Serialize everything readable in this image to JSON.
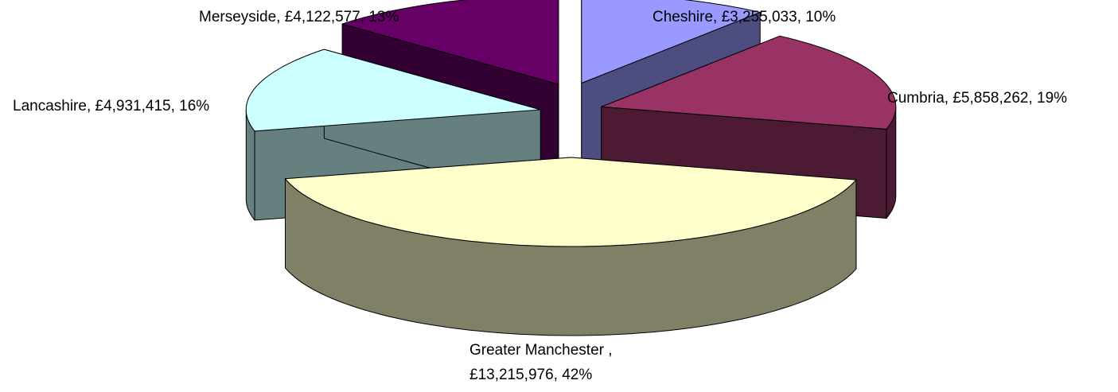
{
  "chart_data": {
    "type": "pie3d",
    "categories": [
      "Cheshire",
      "Cumbria",
      "Greater Manchester",
      "Lancashire",
      "Merseyside"
    ],
    "values": [
      3255033,
      5858262,
      13215976,
      4931415,
      4122577
    ],
    "value_labels": [
      [
        "Cheshire, £3,255,033, 10%"
      ],
      [
        "Cumbria, £5,858,262, 19%"
      ],
      [
        "Greater Manchester ,",
        "£13,215,976, 42%"
      ],
      [
        "Lancashire, £4,931,415, 16%"
      ],
      [
        "Merseyside, £4,122,577, 13%"
      ]
    ],
    "colors": [
      "#9999ff",
      "#993366",
      "#ffffcc",
      "#ccffff",
      "#660066"
    ],
    "side_colors": [
      "#4d4d80",
      "#4d1a33",
      "#808066",
      "#668080",
      "#330033"
    ]
  }
}
